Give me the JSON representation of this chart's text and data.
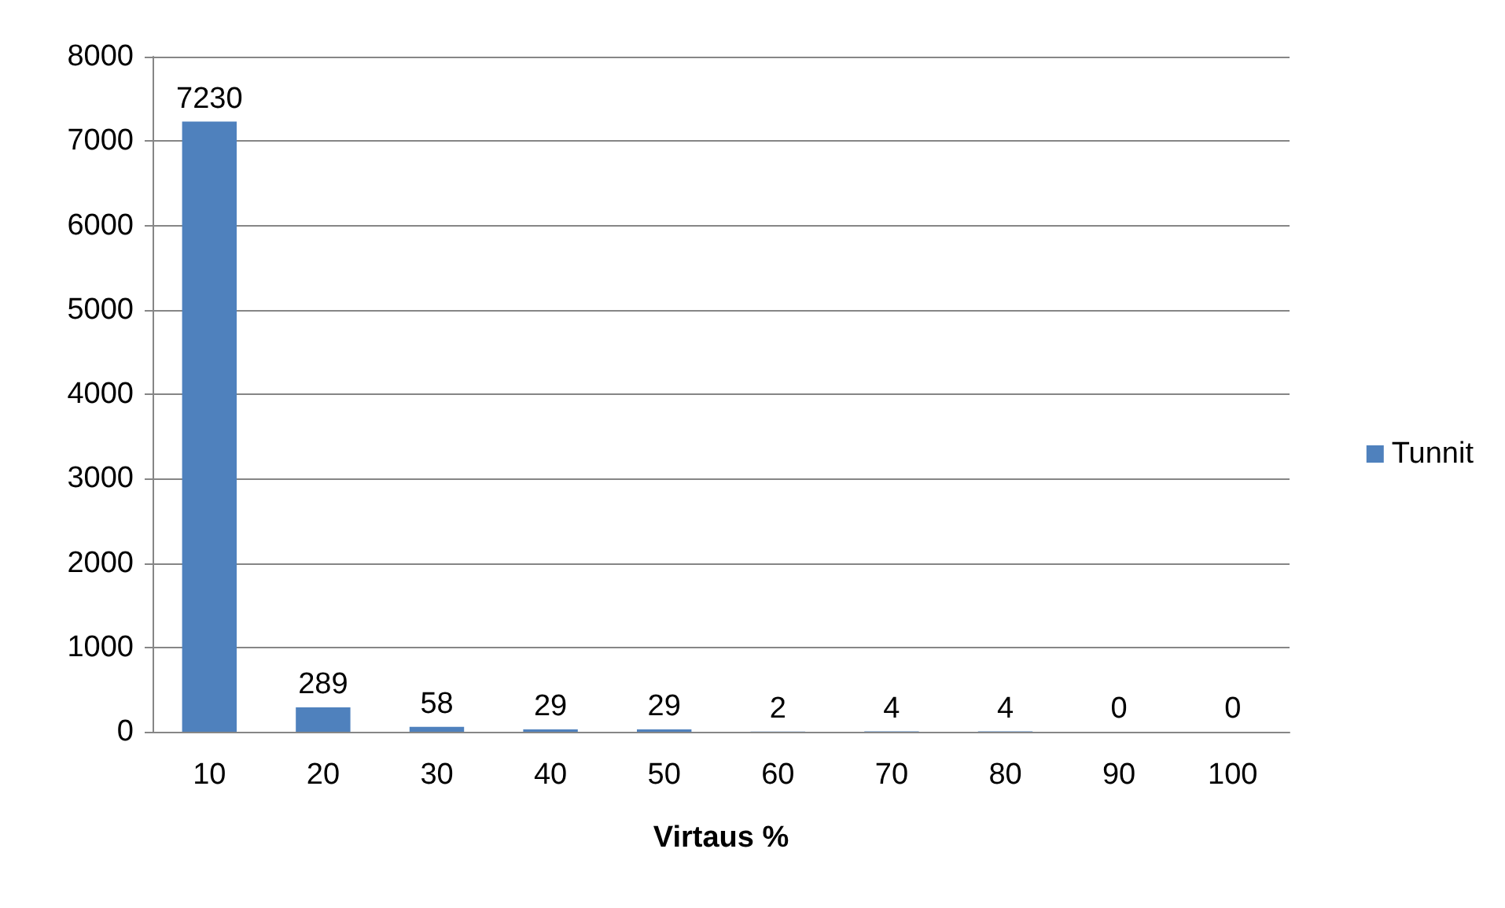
{
  "chart_data": {
    "type": "bar",
    "xlabel": "Virtaus %",
    "categories": [
      "10",
      "20",
      "30",
      "40",
      "50",
      "60",
      "70",
      "80",
      "90",
      "100"
    ],
    "series": [
      {
        "name": "Tunnit",
        "color": "#4f81bd",
        "values": [
          7230,
          289,
          58,
          29,
          29,
          2,
          4,
          4,
          0,
          0
        ]
      }
    ],
    "ylim": [
      0,
      8000
    ],
    "yticks": [
      0,
      1000,
      2000,
      3000,
      4000,
      5000,
      6000,
      7000,
      8000
    ],
    "grid": "y",
    "legend": "right",
    "data_labels": true
  }
}
